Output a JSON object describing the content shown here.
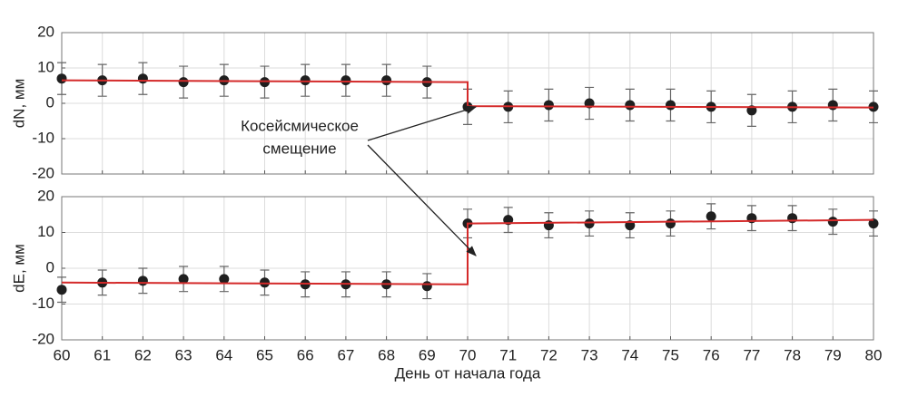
{
  "chart_data": [
    {
      "type": "scatter",
      "y_label": "dN, мм",
      "xlim": [
        60,
        80
      ],
      "xticks": [
        60,
        61,
        62,
        63,
        64,
        65,
        66,
        67,
        68,
        69,
        70,
        71,
        72,
        73,
        74,
        75,
        76,
        77,
        78,
        79,
        80
      ],
      "show_xtick_labels": false,
      "ylim": [
        -20,
        20
      ],
      "yticks": [
        -20,
        -10,
        0,
        10,
        20
      ],
      "grid": true,
      "series": [
        {
          "color": "#1f1f1f",
          "x": [
            60,
            61,
            62,
            63,
            64,
            65,
            66,
            67,
            68,
            69,
            70,
            71,
            72,
            73,
            74,
            75,
            76,
            77,
            78,
            79,
            80
          ],
          "values": [
            7,
            6.5,
            7,
            6,
            6.5,
            6,
            6.5,
            6.5,
            6.5,
            6,
            -1,
            -1,
            -0.5,
            0,
            -0.5,
            -0.5,
            -1,
            -2,
            -1,
            -0.5,
            -1
          ],
          "errors": [
            4.5,
            4.5,
            4.5,
            4.5,
            4.5,
            4.5,
            4.5,
            4.5,
            4.5,
            4.5,
            5,
            4.5,
            4.5,
            4.5,
            4.5,
            4.5,
            4.5,
            4.5,
            4.5,
            4.5,
            4.5
          ]
        },
        {
          "type": "line",
          "color": "#d42a2a",
          "x": [
            60,
            70,
            70,
            80
          ],
          "values": [
            6.5,
            6,
            -0.8,
            -1.2
          ]
        }
      ],
      "annotation": [
        "Косейсмическое",
        "смещение"
      ]
    },
    {
      "type": "scatter",
      "y_label": "dE, мм",
      "x_label": "День от начала года",
      "xlim": [
        60,
        80
      ],
      "xticks": [
        60,
        61,
        62,
        63,
        64,
        65,
        66,
        67,
        68,
        69,
        70,
        71,
        72,
        73,
        74,
        75,
        76,
        77,
        78,
        79,
        80
      ],
      "show_xtick_labels": true,
      "ylim": [
        -20,
        20
      ],
      "yticks": [
        -20,
        -10,
        0,
        10,
        20
      ],
      "grid": true,
      "series": [
        {
          "color": "#1f1f1f",
          "x": [
            60,
            61,
            62,
            63,
            64,
            65,
            66,
            67,
            68,
            69,
            70,
            71,
            72,
            73,
            74,
            75,
            76,
            77,
            78,
            79,
            80
          ],
          "values": [
            -6,
            -4,
            -3.5,
            -3,
            -3,
            -4,
            -4.5,
            -4.5,
            -4.5,
            -5,
            12.5,
            13.5,
            12,
            12.5,
            12,
            12.5,
            14.5,
            14,
            14,
            13,
            12.5
          ],
          "errors": [
            3.5,
            3.5,
            3.5,
            3.5,
            3.5,
            3.5,
            3.5,
            3.5,
            3.5,
            3.5,
            4,
            3.5,
            3.5,
            3.5,
            3.5,
            3.5,
            3.5,
            3.5,
            3.5,
            3.5,
            3.5
          ]
        },
        {
          "type": "line",
          "color": "#d42a2a",
          "x": [
            60,
            70,
            70,
            80
          ],
          "values": [
            -4,
            -4.5,
            12.5,
            13.5
          ]
        }
      ]
    }
  ]
}
